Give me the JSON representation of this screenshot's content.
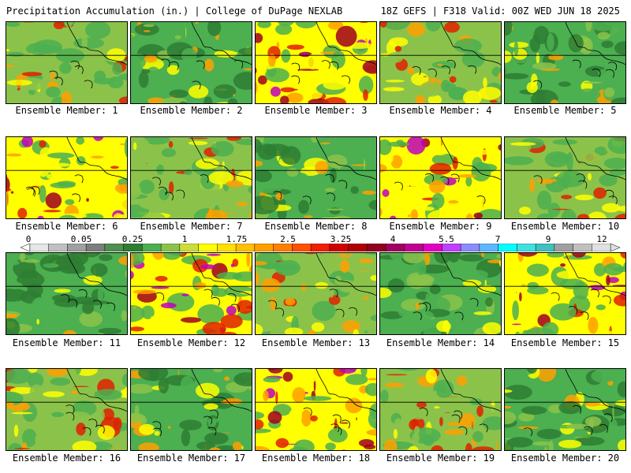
{
  "header": {
    "left_title": "Precipitation Accumulation (in.) | College of DuPage NEXLAB",
    "right_title": "18Z GEFS | F318 Valid: 00Z WED JUN 18 2025"
  },
  "members": [
    {
      "label": "Ensemble Member: 1"
    },
    {
      "label": "Ensemble Member: 2"
    },
    {
      "label": "Ensemble Member: 3"
    },
    {
      "label": "Ensemble Member: 4"
    },
    {
      "label": "Ensemble Member: 5"
    },
    {
      "label": "Ensemble Member: 6"
    },
    {
      "label": "Ensemble Member: 7"
    },
    {
      "label": "Ensemble Member: 8"
    },
    {
      "label": "Ensemble Member: 9"
    },
    {
      "label": "Ensemble Member: 10"
    },
    {
      "label": "Ensemble Member: 11"
    },
    {
      "label": "Ensemble Member: 12"
    },
    {
      "label": "Ensemble Member: 13"
    },
    {
      "label": "Ensemble Member: 14"
    },
    {
      "label": "Ensemble Member: 15"
    },
    {
      "label": "Ensemble Member: 16"
    },
    {
      "label": "Ensemble Member: 17"
    },
    {
      "label": "Ensemble Member: 18"
    },
    {
      "label": "Ensemble Member: 19"
    },
    {
      "label": "Ensemble Member: 20"
    }
  ],
  "colorbar": {
    "ticks": [
      "0",
      "0.05",
      "0.25",
      "1",
      "1.75",
      "2.5",
      "3.25",
      "4",
      "5.5",
      "7",
      "9",
      "12"
    ],
    "colors": [
      "#e6e6e6",
      "#c0c0c0",
      "#a0a0a0",
      "#7d7d7d",
      "#4f8f4f",
      "#2e7d32",
      "#4caf50",
      "#8bc34a",
      "#cddc39",
      "#ffff00",
      "#ffe000",
      "#ffc000",
      "#ffa000",
      "#ff7f00",
      "#ff5000",
      "#f02000",
      "#d00000",
      "#b00000",
      "#900020",
      "#a00060",
      "#c00090",
      "#e000c0",
      "#c040ff",
      "#8c8cff",
      "#5cb8ff",
      "#00ffff",
      "#40e0e0",
      "#40c0c0",
      "#a0a0a0",
      "#c0c0c0",
      "#e0e0e0"
    ]
  },
  "map_colors": {
    "green_dark": "#2e7d32",
    "green": "#4caf50",
    "green_light": "#8bc34a",
    "yellow": "#ffff00",
    "orange": "#ffa000",
    "red": "#e02000",
    "dark_red": "#a00020",
    "magenta": "#c000c0",
    "cyan": "#5cb8ff"
  }
}
